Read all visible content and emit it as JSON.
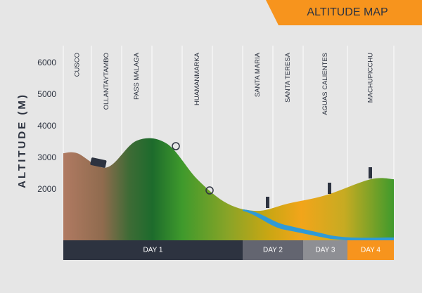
{
  "chart_data": {
    "type": "area",
    "title": "ALTITUDE MAP",
    "y_label": "ALTITUDE (M)",
    "categories": [
      "CUSCO",
      "OLLANTAYTAMBO",
      "PASS MALAGA",
      null,
      "HUAMANMARKA",
      null,
      "SANTA MARIA",
      "SANTA TERESA",
      "AGUAS CALIENTES",
      "MACHUPICCHU"
    ],
    "values": [
      3150,
      2700,
      3550,
      3450,
      2330,
      1560,
      1330,
      1560,
      1820,
      2330
    ],
    "ylim": [
      400,
      6550
    ],
    "yticks": [
      2000,
      3000,
      4000,
      5000,
      6000
    ],
    "days": [
      "DAY 1",
      "DAY 2",
      "DAY 3",
      "DAY 4"
    ]
  }
}
